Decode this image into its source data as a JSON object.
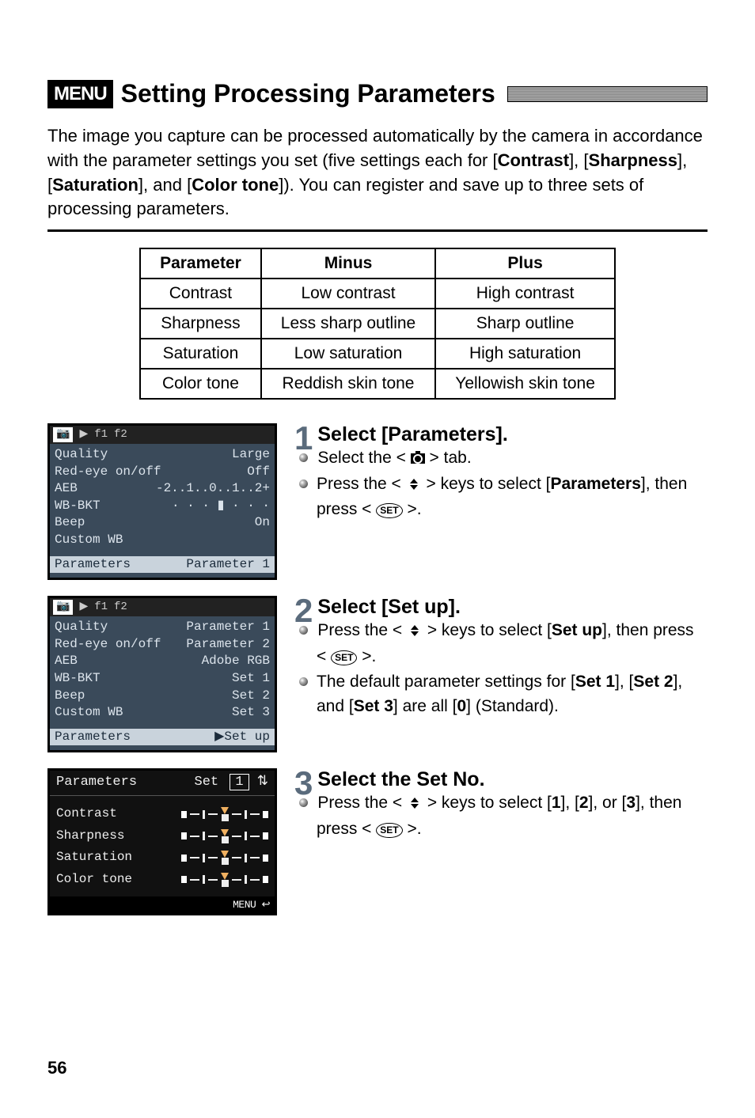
{
  "page_number": "56",
  "title_badge": "MENU",
  "title_text": "Setting Processing Parameters",
  "intro_html": "The image you capture can be processed automatically by the camera in accordance with the parameter settings you set (five settings each for [<b>Contrast</b>], [<b>Sharpness</b>], [<b>Saturation</b>], and [<b>Color tone</b>]). You can register and save up to three sets of processing parameters.",
  "param_table": {
    "headers": [
      "Parameter",
      "Minus",
      "Plus"
    ],
    "rows": [
      [
        "Contrast",
        "Low contrast",
        "High contrast"
      ],
      [
        "Sharpness",
        "Less sharp outline",
        "Sharp outline"
      ],
      [
        "Saturation",
        "Low saturation",
        "High saturation"
      ],
      [
        "Color tone",
        "Reddish skin tone",
        "Yellowish skin tone"
      ]
    ]
  },
  "lcd1": {
    "tabs": [
      "📷",
      "▶",
      "f1",
      "f2"
    ],
    "rows": [
      {
        "l": "Quality",
        "r": "Large"
      },
      {
        "l": "Red-eye on/off",
        "r": "Off"
      },
      {
        "l": "AEB",
        "r": "-2..1..0..1..2+"
      },
      {
        "l": "WB-BKT",
        "r": "· · · ▮ · · ·"
      },
      {
        "l": "Beep",
        "r": "On"
      },
      {
        "l": "Custom WB",
        "r": ""
      }
    ],
    "hl": {
      "l": "Parameters",
      "r": "Parameter 1"
    }
  },
  "lcd2": {
    "tabs": [
      "📷",
      "▶",
      "f1",
      "f2"
    ],
    "rows": [
      {
        "l": "Quality",
        "r": ""
      },
      {
        "l": "Red-eye on/off",
        "r": ""
      },
      {
        "l": "AEB",
        "r": ""
      },
      {
        "l": "WB-BKT",
        "r": ""
      },
      {
        "l": "Beep",
        "r": ""
      },
      {
        "l": "Custom WB",
        "r": ""
      }
    ],
    "sub": [
      "Parameter 1",
      "Parameter 2",
      "Adobe RGB",
      "Set 1",
      "Set 2",
      "Set 3"
    ],
    "hl": {
      "l": "Parameters",
      "r": "▶Set up"
    }
  },
  "lcd3": {
    "title": "Parameters",
    "set_label": "Set",
    "set_no": "1",
    "rows": [
      "Contrast",
      "Sharpness",
      "Saturation",
      "Color tone"
    ],
    "foot": "MENU ↩"
  },
  "steps": [
    {
      "n": "1",
      "head": "Select [Parameters].",
      "bullets": [
        "Select the < {CAM} > tab.",
        "Press the < {UD} > keys to select [<b>Parameters</b>], then press < {SET} >."
      ]
    },
    {
      "n": "2",
      "head": "Select [Set up].",
      "bullets": [
        "Press the < {UD} > keys to select [<b>Set up</b>], then press < {SET} >.",
        "The default parameter settings for [<b>Set 1</b>], [<b>Set 2</b>], and [<b>Set 3</b>] are all [<b>0</b>] (Standard)."
      ]
    },
    {
      "n": "3",
      "head": "Select the Set No.",
      "bullets": [
        "Press the < {UD} > keys to select [<b>1</b>], [<b>2</b>], or [<b>3</b>], then press < {SET} >."
      ]
    }
  ]
}
